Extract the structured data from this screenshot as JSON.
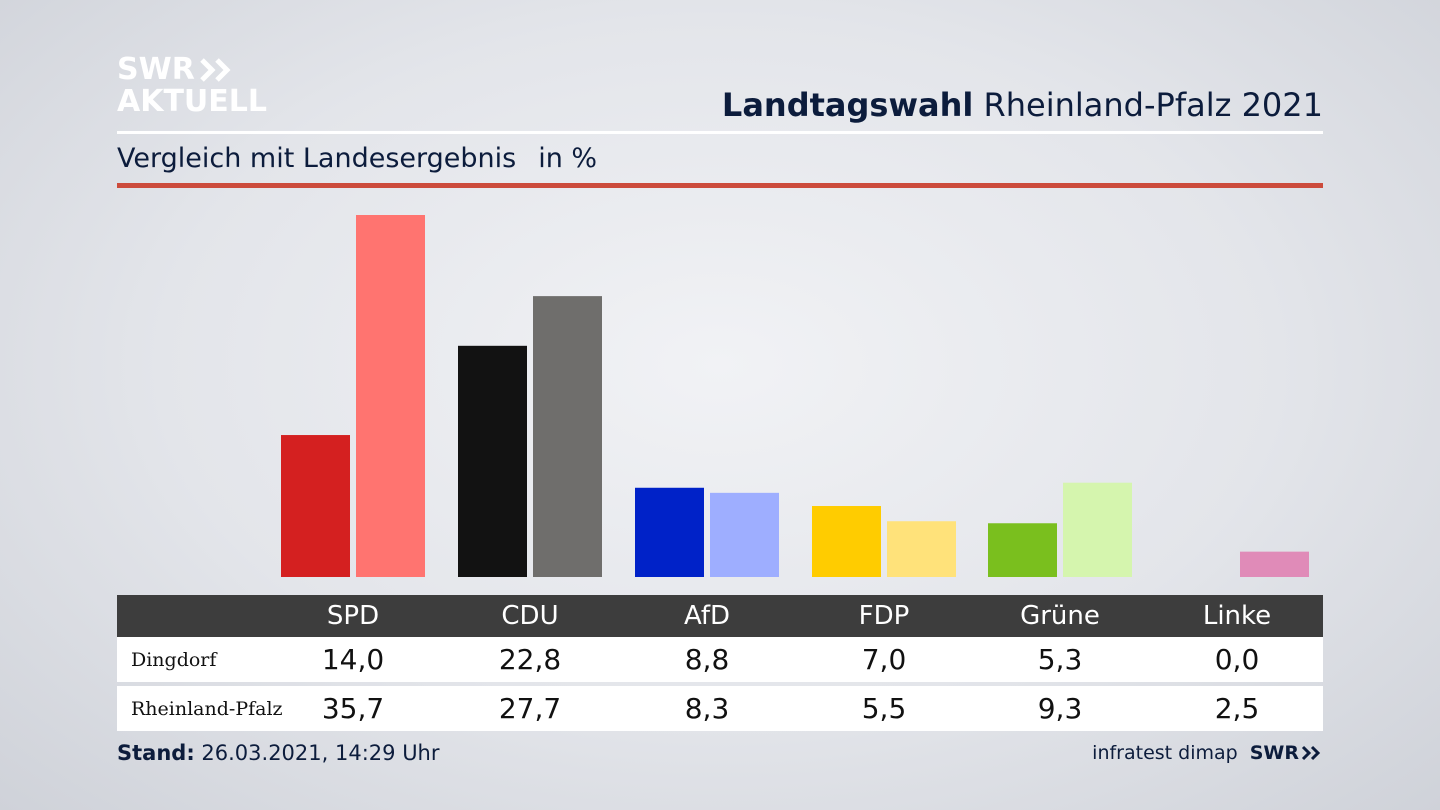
{
  "logo": {
    "line1": "SWR",
    "line2": "AKTUELL"
  },
  "header": {
    "title_bold": "Landtagswahl",
    "title_rest": "Rheinland-Pfalz 2021"
  },
  "subtitle": {
    "text": "Vergleich mit Landesergebnis",
    "unit": "in %"
  },
  "chart_data": {
    "type": "bar",
    "categories": [
      "SPD",
      "CDU",
      "AfD",
      "FDP",
      "Grüne",
      "Linke"
    ],
    "series": [
      {
        "name": "Dingdorf",
        "values": [
          14.0,
          22.8,
          8.8,
          7.0,
          5.3,
          0.0
        ]
      },
      {
        "name": "Rheinland-Pfalz",
        "values": [
          35.7,
          27.7,
          8.3,
          5.5,
          9.3,
          2.5
        ]
      }
    ],
    "ylim": [
      0,
      36
    ],
    "colors": {
      "Dingdorf": [
        "#d42020",
        "#121212",
        "#0022c8",
        "#ffcc00",
        "#7abf1e",
        "#e08bb8"
      ],
      "Rheinland-Pfalz": [
        "#ff7470",
        "#6f6e6c",
        "#9eaeff",
        "#ffe27a",
        "#d5f5ae",
        "#e08bb8"
      ]
    },
    "value_labels": {
      "Dingdorf": [
        "14,0",
        "22,8",
        "8,8",
        "7,0",
        "5,3",
        "0,0"
      ],
      "Rheinland-Pfalz": [
        "35,7",
        "27,7",
        "8,3",
        "5,5",
        "9,3",
        "2,5"
      ]
    }
  },
  "footer": {
    "stand_label": "Stand:",
    "stand_value": "26.03.2021, 14:29 Uhr",
    "source": "infratest dimap",
    "brand": "SWR"
  }
}
